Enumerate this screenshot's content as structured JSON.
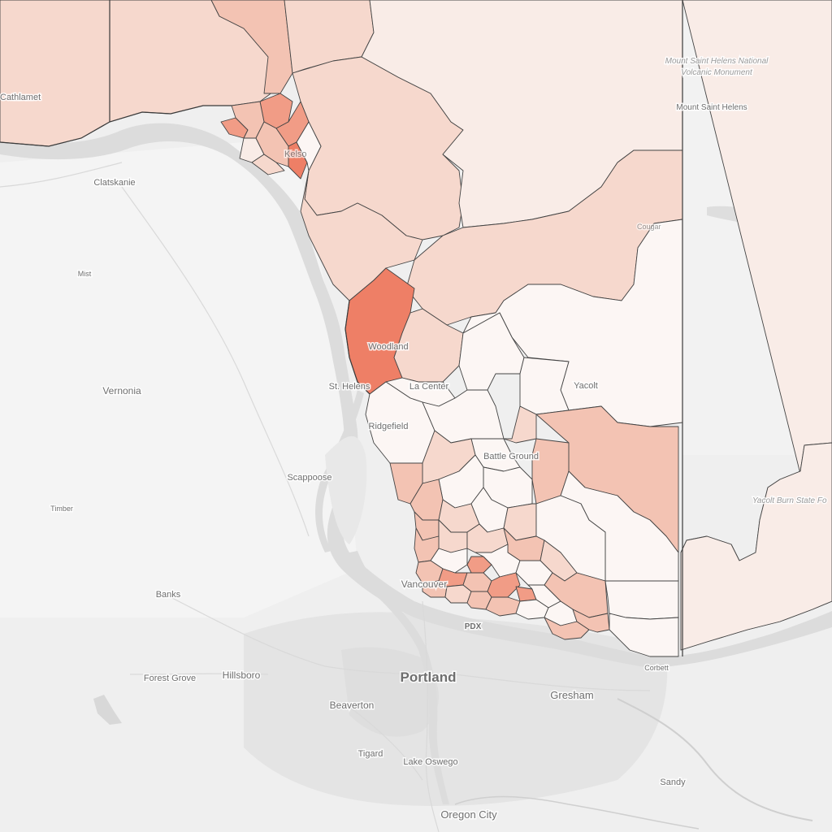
{
  "map": {
    "base_colors": {
      "land": "#efefef",
      "land_light": "#f5f5f5",
      "water": "#dcdcdc",
      "urban": "#e3e3e3",
      "road": "#d5d5d5",
      "boundary": "#3a3a3a"
    },
    "choropleth_colors": {
      "none": "#fcf6f4",
      "very_low": "#f9ece7",
      "low": "#f6d8cd",
      "medium": "#f3c3b3",
      "high": "#f19c86",
      "very_high": "#ee7f66"
    },
    "labels": {
      "cathlamet": "Cathlamet",
      "clatskanie": "Clatskanie",
      "mist": "Mist",
      "vernonia": "Vernonia",
      "st_helens": "St. Helens",
      "woodland": "Woodland",
      "la_center": "La Center",
      "ridgefield": "Ridgefield",
      "scappoose": "Scappoose",
      "timber": "Timber",
      "battle_ground": "Battle Ground",
      "yacolt": "Yacolt",
      "vancouver": "Vancouver",
      "banks": "Banks",
      "pdx": "PDX",
      "forest_grove": "Forest Grove",
      "hillsboro": "Hillsboro",
      "portland": "Portland",
      "gresham": "Gresham",
      "beaverton": "Beaverton",
      "tigard": "Tigard",
      "lake_oswego": "Lake Oswego",
      "oregon_city": "Oregon City",
      "sandy": "Sandy",
      "corbett": "Corbett",
      "cougar": "Cougar",
      "kelso": "Kelso",
      "mount_st_helens": "Mount Saint Helens",
      "msh_monument_1": "Mount Saint Helens National",
      "msh_monument_2": "Volcanic Monument",
      "yacolt_burn": "Yacolt Burn State Fo"
    }
  }
}
